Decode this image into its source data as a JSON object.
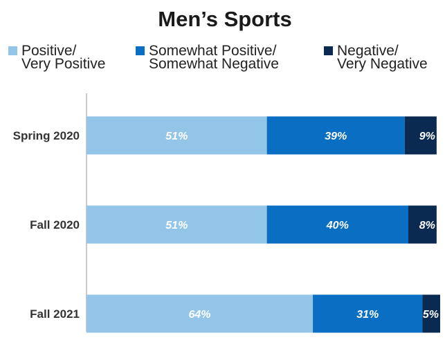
{
  "chart_data": {
    "type": "bar",
    "orientation": "horizontal",
    "stacked": true,
    "title": "Men’s Sports",
    "categories": [
      "Spring 2020",
      "Fall 2020",
      "Fall 2021"
    ],
    "series": [
      {
        "name": "Positive/\nVery Positive",
        "values": [
          51,
          51,
          64
        ],
        "labels": [
          "51%",
          "51%",
          "64%"
        ],
        "color": "#92c5e8"
      },
      {
        "name": "Somewhat Positive/\nSomewhat Negative",
        "values": [
          39,
          40,
          31
        ],
        "labels": [
          "39%",
          "40%",
          "31%"
        ],
        "color": "#0a6fc2"
      },
      {
        "name": "Negative/\nVery Negative",
        "values": [
          9,
          8,
          5
        ],
        "labels": [
          "9%",
          "8%",
          "5%"
        ],
        "color": "#0b2a52"
      }
    ],
    "xlim": [
      0,
      100
    ],
    "legend_position": "top",
    "grid": false
  }
}
